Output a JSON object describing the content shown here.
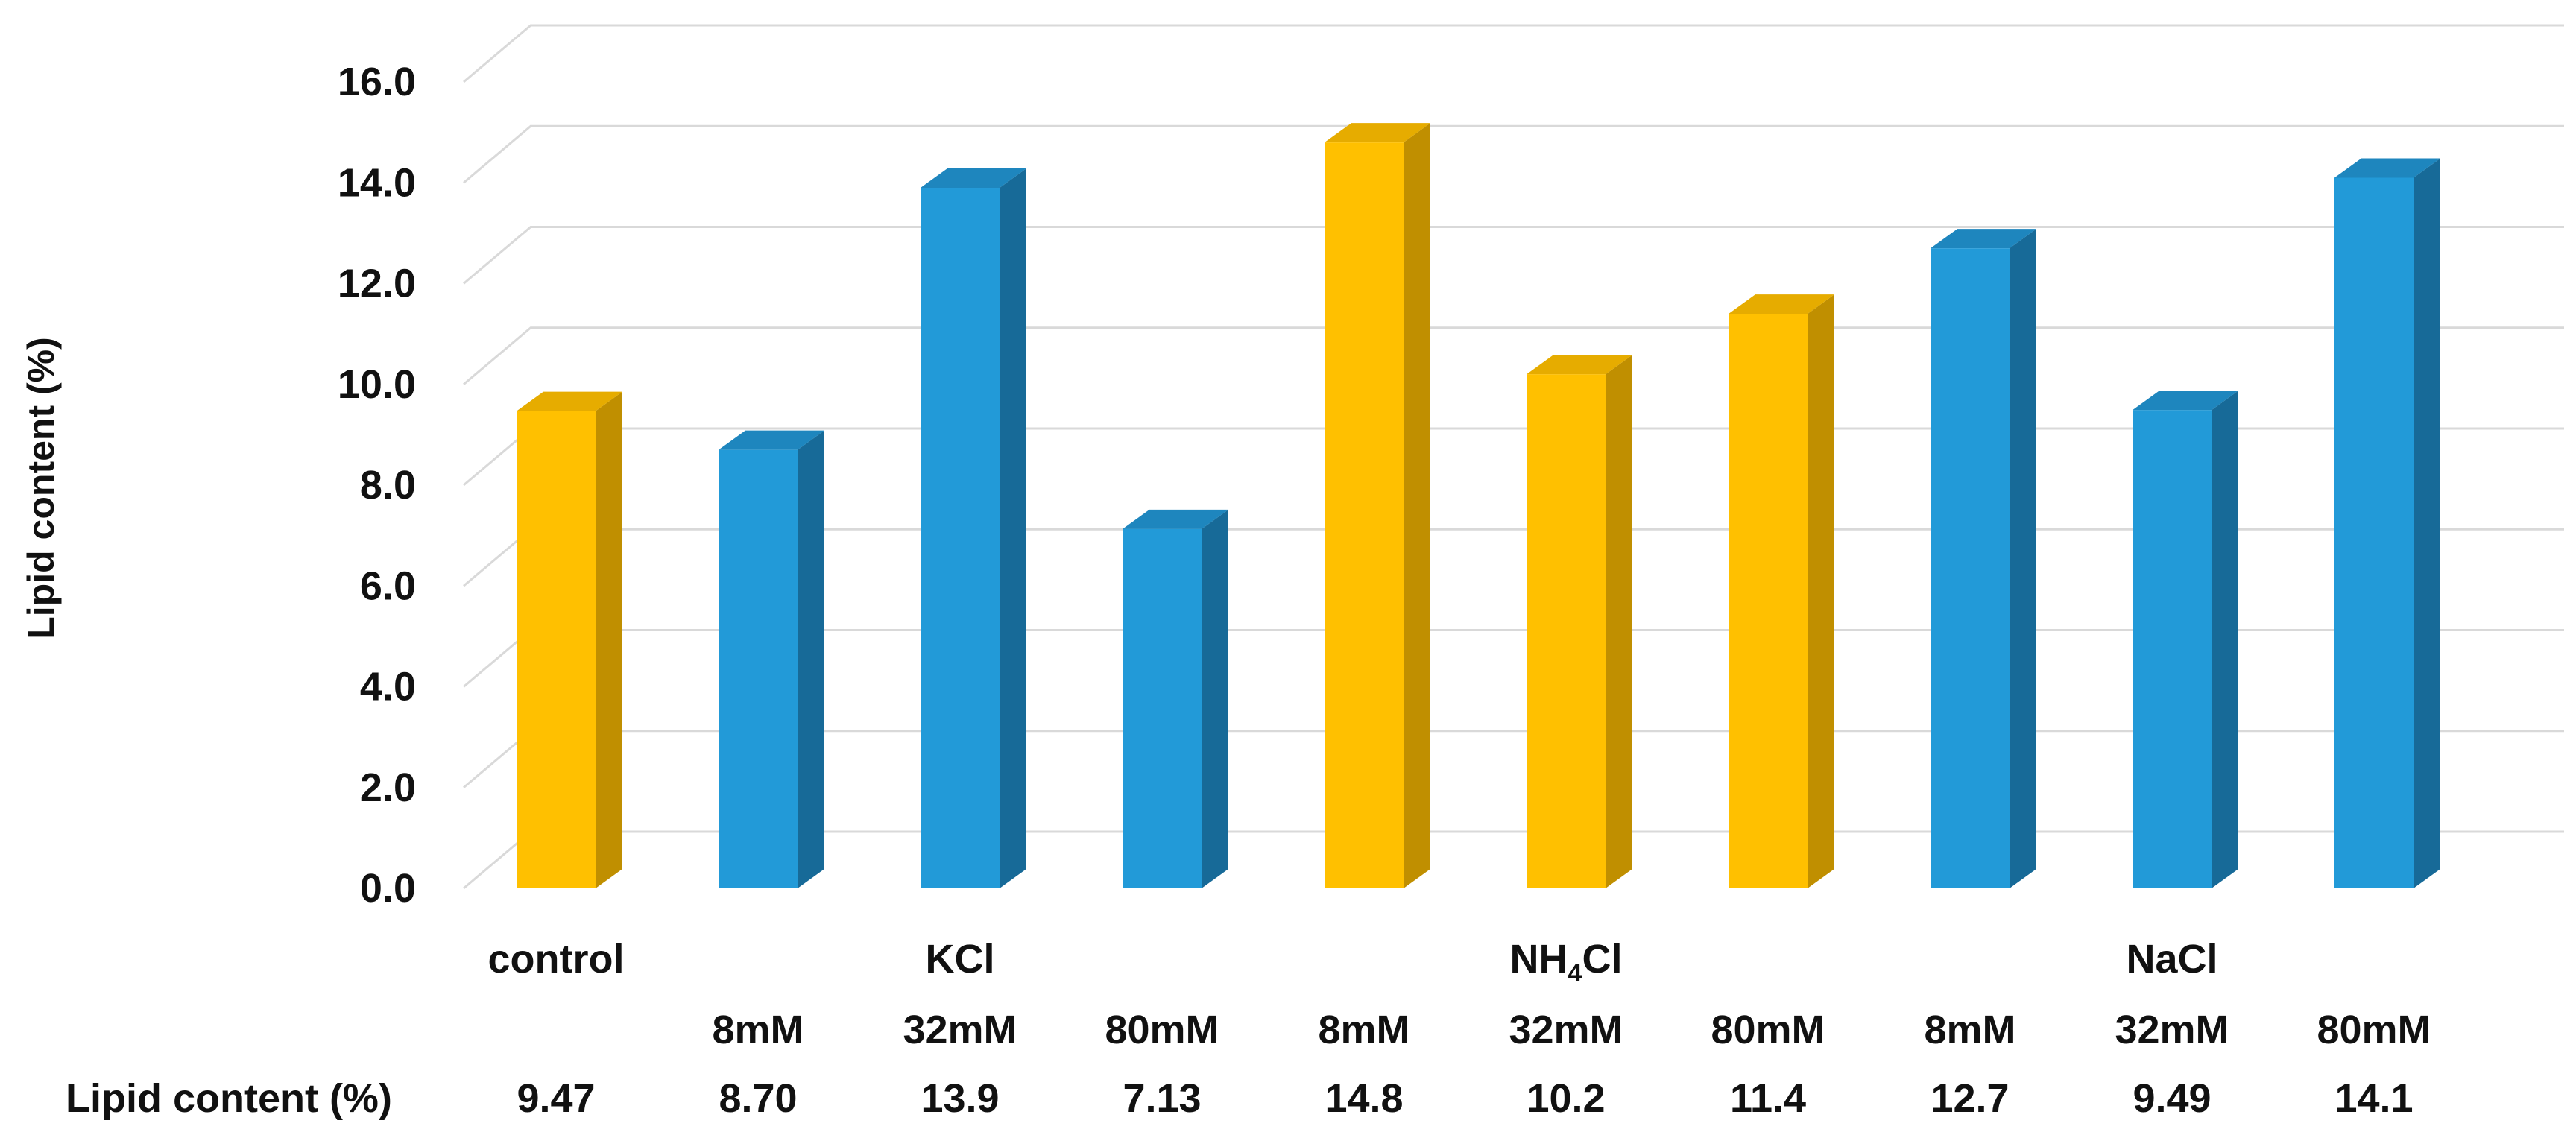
{
  "chart_data": {
    "type": "bar",
    "title": "",
    "ylabel": "Lipid content (%)",
    "ylim": [
      0,
      16
    ],
    "yticks": [
      "0.0",
      "2.0",
      "4.0",
      "6.0",
      "8.0",
      "10.0",
      "12.0",
      "14.0",
      "16.0"
    ],
    "grid": true,
    "categories": [
      "control",
      "8mM",
      "32mM",
      "80mM",
      "8mM",
      "32mM",
      "80mM",
      "8mM",
      "32mM",
      "80mM"
    ],
    "groups": [
      {
        "label": "control",
        "sub": "",
        "color": "#FFC000",
        "side_color": "#C08F00",
        "top_color": "#E6AC00"
      },
      {
        "label": "",
        "sub": "8mM",
        "color": "#229AD8",
        "side_color": "#176A98",
        "top_color": "#1E86BE"
      },
      {
        "label": "KCl",
        "sub": "32mM",
        "color": "#229AD8",
        "side_color": "#176A98",
        "top_color": "#1E86BE"
      },
      {
        "label": "",
        "sub": "80mM",
        "color": "#229AD8",
        "side_color": "#176A98",
        "top_color": "#1E86BE"
      },
      {
        "label": "",
        "sub": "8mM",
        "color": "#FFC000",
        "side_color": "#C08F00",
        "top_color": "#E6AC00"
      },
      {
        "label": "NH4Cl",
        "label_main": "NH",
        "label_sub": "4",
        "label_tail": "Cl",
        "sub": "32mM",
        "color": "#FFC000",
        "side_color": "#C08F00",
        "top_color": "#E6AC00"
      },
      {
        "label": "",
        "sub": "80mM",
        "color": "#FFC000",
        "side_color": "#C08F00",
        "top_color": "#E6AC00"
      },
      {
        "label": "",
        "sub": "8mM",
        "color": "#229AD8",
        "side_color": "#176A98",
        "top_color": "#1E86BE"
      },
      {
        "label": "NaCl",
        "sub": "32mM",
        "color": "#229AD8",
        "side_color": "#176A98",
        "top_color": "#1E86BE"
      },
      {
        "label": "",
        "sub": "80mM",
        "color": "#229AD8",
        "side_color": "#176A98",
        "top_color": "#1E86BE"
      }
    ],
    "values": [
      9.47,
      8.7,
      13.9,
      7.13,
      14.8,
      10.2,
      11.4,
      12.7,
      9.49,
      14.1
    ],
    "table_row_label": "Lipid content (%)",
    "table_values": [
      "9.47",
      "8.70",
      "13.9",
      "7.13",
      "14.8",
      "10.2",
      "11.4",
      "12.7",
      "9.49",
      "14.1"
    ],
    "colors": {
      "grid": "#D9D9D9",
      "text": "#111111"
    }
  }
}
